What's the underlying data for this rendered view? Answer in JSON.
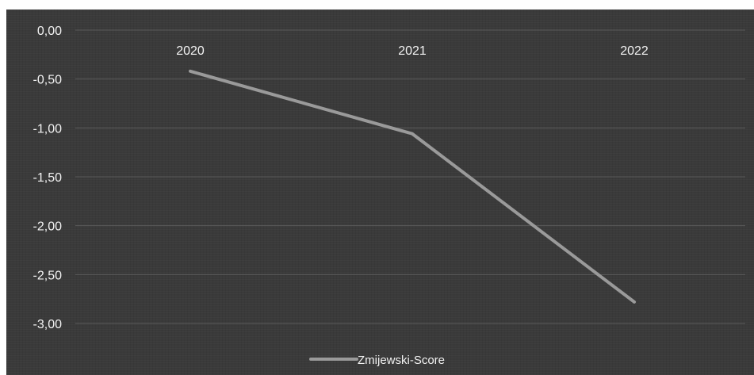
{
  "chart_data": {
    "type": "line",
    "categories": [
      "2020",
      "2021",
      "2022"
    ],
    "series": [
      {
        "name": "Zmijewski-Score",
        "values": [
          -0.42,
          -1.06,
          -2.78
        ],
        "color": "#9a9a9a"
      }
    ],
    "y_ticks": [
      "0,00",
      "-0,50",
      "-1,00",
      "-1,50",
      "-2,00",
      "-2,50",
      "-3,00"
    ],
    "ylim": [
      -3.0,
      0.0
    ],
    "x_axis_position": "top",
    "grid": true,
    "legend": "bottom-center",
    "background_color": "#3a3a3a"
  }
}
